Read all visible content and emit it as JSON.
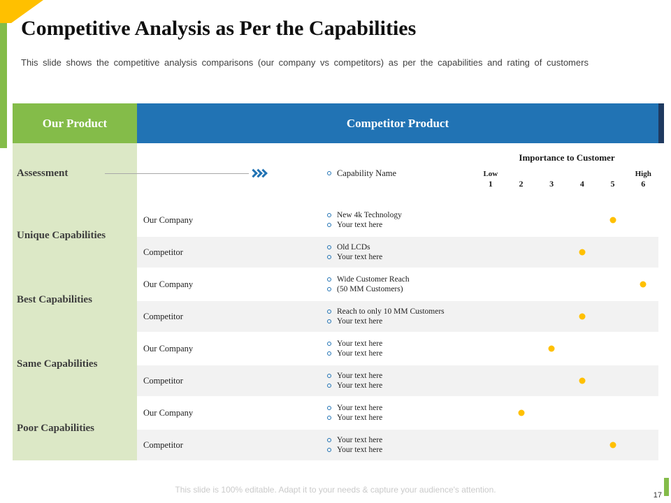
{
  "slide": {
    "title": "Competitive Analysis as Per the Capabilities",
    "subtitle": "This slide shows the competitive analysis comparisons (our company vs competitors) as per the capabilities and rating of customers",
    "footer": "This slide is 100% editable. Adapt it to your needs & capture your audience's attention.",
    "page_number": "17"
  },
  "table": {
    "our_product_header": "Our Product",
    "competitor_product_header": "Competitor Product",
    "assessment_label": "Assessment",
    "capability_name_label": "Capability Name",
    "importance_header": "Importance to Customer",
    "scale": [
      {
        "label": "Low",
        "num": "1"
      },
      {
        "label": "",
        "num": "2"
      },
      {
        "label": "",
        "num": "3"
      },
      {
        "label": "",
        "num": "4"
      },
      {
        "label": "",
        "num": "5"
      },
      {
        "label": "High",
        "num": "6"
      }
    ],
    "groups": [
      "Unique Capabilities",
      "Best Capabilities",
      "Same Capabilities",
      "Poor Capabilities"
    ],
    "rows": [
      {
        "company": "Our Company",
        "lines": [
          "New 4k Technology",
          "Your text here"
        ],
        "rating": 5
      },
      {
        "company": "Competitor",
        "lines": [
          "Old LCDs",
          "Your text here"
        ],
        "rating": 4
      },
      {
        "company": "Our Company",
        "lines": [
          "Wide Customer Reach",
          "(50 MM Customers)"
        ],
        "rating": 6
      },
      {
        "company": "Competitor",
        "lines": [
          "Reach to only 10 MM Customers",
          "Your text here"
        ],
        "rating": 4
      },
      {
        "company": "Our Company",
        "lines": [
          "Your text here",
          "Your text here"
        ],
        "rating": 3
      },
      {
        "company": "Competitor",
        "lines": [
          "Your text here",
          "Your text here"
        ],
        "rating": 4
      },
      {
        "company": "Our Company",
        "lines": [
          "Your text here",
          "Your text here"
        ],
        "rating": 2
      },
      {
        "company": "Competitor",
        "lines": [
          "Your text here",
          "Your text here"
        ],
        "rating": 5
      }
    ],
    "colors": {
      "green": "#84BC49",
      "light_green": "#DCE8C6",
      "blue": "#2173B4",
      "navy": "#1F3A60",
      "yellow": "#FFC000",
      "row_alt": "#F2F2F2"
    }
  }
}
